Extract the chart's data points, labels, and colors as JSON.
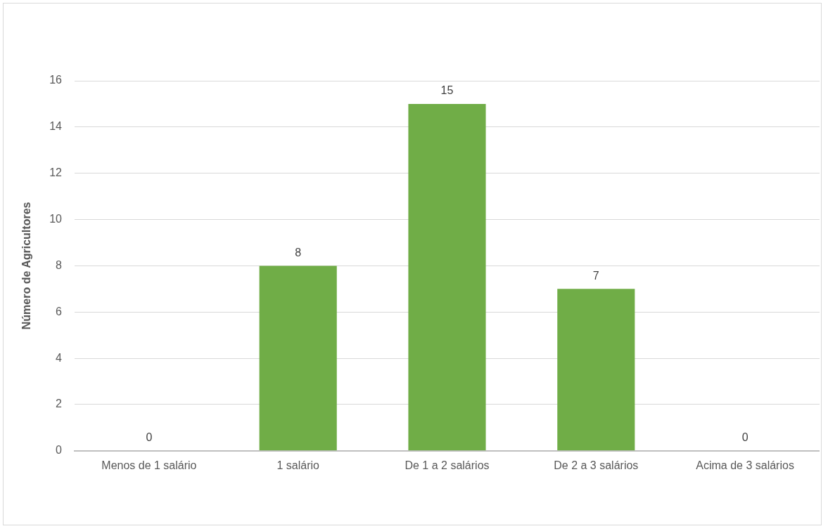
{
  "chart_data": {
    "type": "bar",
    "ylabel": "Número de Agricultores",
    "categories": [
      "Menos de 1 salário",
      "1 salário",
      "De 1 a 2 salários",
      "De 2 a 3 salários",
      "Acima de 3 salários"
    ],
    "values": [
      0,
      8,
      15,
      7,
      0
    ],
    "color": "#70ad47",
    "ylim": [
      0,
      16
    ],
    "yticks": [
      0,
      2,
      4,
      6,
      8,
      10,
      12,
      14,
      16
    ],
    "grid": "y",
    "data_labels": true
  }
}
